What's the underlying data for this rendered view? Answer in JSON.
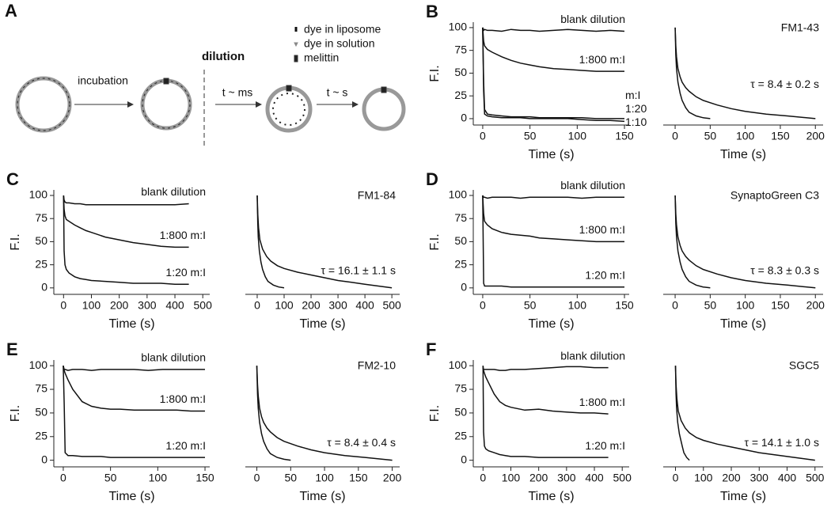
{
  "diagram": {
    "panel": "A",
    "steps": [
      "incubation",
      "t ~ ms",
      "t ~ s"
    ],
    "dilution": "dilution",
    "legend": [
      "dye in liposome",
      "dye in solution",
      "melittin"
    ]
  },
  "chart_data": [
    {
      "type": "line",
      "panel": "B",
      "xlabel": "Time (s)",
      "ylabel": "F.I.",
      "color": "#111111",
      "xlim": [
        -10,
        155
      ],
      "xticks": [
        0,
        50,
        100,
        150
      ],
      "ylim": [
        -7,
        106
      ],
      "yticks": [
        0,
        25,
        50,
        75,
        100
      ],
      "annotation": "m:I",
      "series": [
        {
          "name": "blank dilution",
          "x": [
            0,
            1,
            2,
            5,
            10,
            20,
            30,
            40,
            50,
            60,
            75,
            90,
            105,
            120,
            135,
            150
          ],
          "values": [
            100,
            97,
            98,
            97,
            97,
            96,
            98,
            97,
            97,
            96,
            97,
            98,
            97,
            96,
            97,
            96
          ]
        },
        {
          "name": "1:800 m:I",
          "x": [
            0,
            1,
            2,
            5,
            10,
            20,
            30,
            40,
            50,
            60,
            75,
            90,
            105,
            120,
            135,
            150
          ],
          "values": [
            100,
            85,
            80,
            76,
            73,
            68,
            64,
            61,
            59,
            57,
            55,
            54,
            53,
            52,
            52,
            52
          ]
        },
        {
          "name": "1:20",
          "x": [
            0,
            1,
            2,
            5,
            10,
            20,
            30,
            40,
            50,
            60,
            75,
            90,
            105,
            120,
            135,
            150
          ],
          "values": [
            100,
            40,
            10,
            5,
            4,
            3,
            2,
            2,
            2,
            1,
            1,
            1,
            1,
            0,
            0,
            0
          ]
        },
        {
          "name": "1:10",
          "x": [
            0,
            1,
            2,
            5,
            10,
            20,
            30,
            40,
            50,
            60,
            75,
            90,
            105,
            120,
            135,
            150
          ],
          "values": [
            100,
            30,
            5,
            3,
            2,
            1,
            1,
            1,
            0,
            0,
            0,
            0,
            -1,
            -2,
            -2,
            -3
          ]
        }
      ]
    },
    {
      "type": "line",
      "title": "FM1-43",
      "annotation": "τ = 8.4 ± 0.2 s",
      "xlabel": "Time (s)",
      "color": "#111111",
      "xlim": [
        -17,
        211
      ],
      "xticks": [
        0,
        50,
        100,
        150,
        200
      ],
      "ylim": [
        -7,
        106
      ],
      "series": [
        {
          "x": [
            0,
            1,
            2,
            4,
            7,
            10,
            15,
            20,
            30,
            40,
            50
          ],
          "values": [
            100,
            70,
            55,
            40,
            28,
            20,
            12,
            7,
            3,
            1,
            0
          ]
        },
        {
          "x": [
            0,
            1,
            2,
            4,
            7,
            10,
            15,
            20,
            30,
            40,
            60,
            80,
            100,
            130,
            160,
            200
          ],
          "values": [
            100,
            80,
            68,
            55,
            46,
            40,
            34,
            30,
            24,
            20,
            15,
            11,
            8,
            5,
            3,
            0
          ]
        }
      ]
    },
    {
      "type": "line",
      "panel": "C",
      "xlabel": "Time (s)",
      "ylabel": "F.I.",
      "color": "#111111",
      "xlim": [
        -35,
        525
      ],
      "xticks": [
        0,
        100,
        200,
        300,
        400,
        500
      ],
      "ylim": [
        -7,
        106
      ],
      "yticks": [
        0,
        25,
        50,
        75,
        100
      ],
      "series": [
        {
          "name": "blank dilution",
          "x": [
            0,
            2,
            5,
            10,
            20,
            40,
            60,
            80,
            100,
            150,
            200,
            250,
            300,
            350,
            400,
            450
          ],
          "values": [
            100,
            95,
            93,
            92,
            92,
            91,
            91,
            90,
            90,
            90,
            90,
            90,
            90,
            90,
            90,
            91
          ]
        },
        {
          "name": "1:800 m:I",
          "x": [
            0,
            2,
            5,
            10,
            20,
            40,
            60,
            80,
            100,
            150,
            200,
            250,
            300,
            350,
            400,
            450
          ],
          "values": [
            100,
            85,
            78,
            74,
            72,
            68,
            65,
            62,
            60,
            55,
            52,
            49,
            47,
            45,
            44,
            44
          ]
        },
        {
          "name": "1:20 m:I",
          "x": [
            0,
            2,
            5,
            10,
            20,
            40,
            60,
            80,
            100,
            150,
            200,
            250,
            300,
            350,
            400,
            450
          ],
          "values": [
            100,
            40,
            25,
            20,
            16,
            12,
            10,
            9,
            8,
            7,
            6,
            5,
            5,
            5,
            4,
            4
          ]
        }
      ]
    },
    {
      "type": "line",
      "title": "FM1-84",
      "annotation": "τ = 16.1 ± 1.1 s",
      "xlabel": "Time (s)",
      "color": "#111111",
      "xlim": [
        -44,
        529
      ],
      "xticks": [
        0,
        100,
        200,
        300,
        400,
        500
      ],
      "ylim": [
        -7,
        106
      ],
      "series": [
        {
          "x": [
            0,
            2,
            4,
            8,
            14,
            20,
            30,
            40,
            60,
            80,
            100
          ],
          "values": [
            100,
            70,
            55,
            40,
            28,
            20,
            12,
            7,
            3,
            1,
            0
          ]
        },
        {
          "x": [
            0,
            2,
            5,
            10,
            20,
            35,
            50,
            75,
            100,
            150,
            200,
            250,
            300,
            350,
            400,
            450,
            500
          ],
          "values": [
            100,
            80,
            65,
            52,
            42,
            34,
            29,
            24,
            21,
            17,
            14,
            11,
            8,
            6,
            4,
            2,
            0
          ]
        }
      ]
    },
    {
      "type": "line",
      "panel": "D",
      "xlabel": "Time (s)",
      "ylabel": "F.I.",
      "color": "#111111",
      "xlim": [
        -10,
        155
      ],
      "xticks": [
        0,
        50,
        100,
        150
      ],
      "ylim": [
        -7,
        106
      ],
      "yticks": [
        0,
        25,
        50,
        75,
        100
      ],
      "series": [
        {
          "name": "blank dilution",
          "x": [
            0,
            1,
            2,
            5,
            10,
            20,
            30,
            40,
            50,
            60,
            75,
            90,
            105,
            120,
            135,
            150
          ],
          "values": [
            100,
            98,
            98,
            97,
            98,
            98,
            98,
            97,
            98,
            98,
            98,
            98,
            97,
            98,
            98,
            98
          ]
        },
        {
          "name": "1:800 m:I",
          "x": [
            0,
            1,
            2,
            5,
            10,
            20,
            30,
            40,
            50,
            60,
            75,
            90,
            105,
            120,
            135,
            150
          ],
          "values": [
            100,
            80,
            72,
            68,
            64,
            60,
            58,
            57,
            56,
            54,
            53,
            52,
            51,
            50,
            50,
            50
          ]
        },
        {
          "name": "1:20 m:I",
          "x": [
            0,
            1,
            2,
            5,
            10,
            20,
            30,
            40,
            50,
            60,
            75,
            90,
            105,
            120,
            135,
            150
          ],
          "values": [
            100,
            5,
            2,
            2,
            2,
            2,
            1,
            1,
            1,
            1,
            1,
            1,
            1,
            1,
            1,
            1
          ]
        }
      ]
    },
    {
      "type": "line",
      "title": "SynaptoGreen C3",
      "annotation": "τ = 8.3 ± 0.3 s",
      "xlabel": "Time (s)",
      "color": "#111111",
      "xlim": [
        -17,
        211
      ],
      "xticks": [
        0,
        50,
        100,
        150,
        200
      ],
      "ylim": [
        -7,
        106
      ],
      "series": [
        {
          "x": [
            0,
            1,
            2,
            4,
            7,
            10,
            15,
            20,
            30,
            40,
            50
          ],
          "values": [
            100,
            70,
            55,
            40,
            28,
            20,
            12,
            7,
            3,
            1,
            0
          ]
        },
        {
          "x": [
            0,
            1,
            2,
            4,
            7,
            10,
            15,
            20,
            30,
            40,
            60,
            80,
            100,
            130,
            160,
            200
          ],
          "values": [
            100,
            80,
            68,
            55,
            46,
            40,
            34,
            30,
            24,
            20,
            15,
            11,
            8,
            5,
            3,
            0
          ]
        }
      ]
    },
    {
      "type": "line",
      "panel": "E",
      "xlabel": "Time (s)",
      "ylabel": "F.I.",
      "color": "#111111",
      "xlim": [
        -10,
        155
      ],
      "xticks": [
        0,
        50,
        100,
        150
      ],
      "ylim": [
        -7,
        106
      ],
      "yticks": [
        0,
        25,
        50,
        75,
        100
      ],
      "series": [
        {
          "name": "blank dilution",
          "x": [
            0,
            1,
            2,
            5,
            10,
            20,
            30,
            40,
            50,
            60,
            75,
            90,
            105,
            120,
            135,
            150
          ],
          "values": [
            100,
            96,
            96,
            95,
            96,
            96,
            95,
            96,
            96,
            96,
            96,
            95,
            96,
            96,
            96,
            96
          ]
        },
        {
          "name": "1:800 m:I",
          "x": [
            0,
            1,
            2,
            5,
            10,
            20,
            30,
            40,
            50,
            60,
            75,
            90,
            105,
            120,
            135,
            150
          ],
          "values": [
            100,
            95,
            92,
            85,
            75,
            62,
            57,
            55,
            54,
            54,
            53,
            53,
            53,
            53,
            52,
            52
          ]
        },
        {
          "name": "1:20 m:I",
          "x": [
            0,
            1,
            2,
            5,
            10,
            20,
            30,
            40,
            50,
            60,
            75,
            90,
            105,
            120,
            135,
            150
          ],
          "values": [
            100,
            60,
            8,
            5,
            5,
            4,
            4,
            4,
            3,
            3,
            3,
            3,
            3,
            3,
            3,
            3
          ]
        }
      ]
    },
    {
      "type": "line",
      "title": "FM2-10",
      "annotation": "τ = 8.4 ± 0.4 s",
      "xlabel": "Time (s)",
      "color": "#111111",
      "xlim": [
        -17,
        211
      ],
      "xticks": [
        0,
        50,
        100,
        150,
        200
      ],
      "ylim": [
        -7,
        106
      ],
      "series": [
        {
          "x": [
            0,
            1,
            2,
            4,
            7,
            10,
            15,
            20,
            30,
            40,
            50
          ],
          "values": [
            100,
            70,
            55,
            40,
            28,
            20,
            12,
            7,
            3,
            1,
            0
          ]
        },
        {
          "x": [
            0,
            1,
            2,
            4,
            7,
            10,
            15,
            20,
            30,
            40,
            60,
            80,
            100,
            130,
            160,
            200
          ],
          "values": [
            100,
            80,
            68,
            55,
            46,
            40,
            34,
            30,
            24,
            20,
            15,
            11,
            8,
            5,
            3,
            0
          ]
        }
      ]
    },
    {
      "type": "line",
      "panel": "F",
      "xlabel": "Time (s)",
      "ylabel": "F.I.",
      "color": "#111111",
      "xlim": [
        -35,
        525
      ],
      "xticks": [
        0,
        100,
        200,
        300,
        400,
        500
      ],
      "ylim": [
        -7,
        106
      ],
      "yticks": [
        0,
        25,
        50,
        75,
        100
      ],
      "series": [
        {
          "name": "blank dilution",
          "x": [
            0,
            2,
            5,
            10,
            20,
            40,
            60,
            80,
            100,
            150,
            200,
            250,
            300,
            350,
            400,
            450
          ],
          "values": [
            98,
            96,
            96,
            96,
            96,
            96,
            95,
            95,
            96,
            96,
            97,
            98,
            99,
            99,
            98,
            98
          ]
        },
        {
          "name": "1:800 m:I",
          "x": [
            0,
            2,
            5,
            10,
            20,
            40,
            60,
            80,
            100,
            150,
            200,
            250,
            300,
            350,
            400,
            450
          ],
          "values": [
            100,
            95,
            92,
            88,
            82,
            70,
            62,
            58,
            56,
            53,
            54,
            52,
            51,
            50,
            50,
            49
          ]
        },
        {
          "name": "1:20 m:I",
          "x": [
            0,
            2,
            5,
            10,
            20,
            40,
            60,
            80,
            100,
            150,
            200,
            250,
            300,
            350,
            400,
            450
          ],
          "values": [
            100,
            30,
            15,
            12,
            10,
            8,
            6,
            5,
            4,
            4,
            3,
            3,
            3,
            3,
            3,
            3
          ]
        }
      ]
    },
    {
      "type": "line",
      "title": "SGC5",
      "annotation": "τ = 14.1 ± 1.0 s",
      "xlabel": "Time (s)",
      "color": "#111111",
      "xlim": [
        -44,
        529
      ],
      "xticks": [
        0,
        100,
        200,
        300,
        400,
        500
      ],
      "ylim": [
        -7,
        106
      ],
      "series": [
        {
          "x": [
            0,
            2,
            4,
            8,
            14,
            20,
            25,
            30,
            40,
            50
          ],
          "values": [
            100,
            70,
            55,
            40,
            28,
            20,
            14,
            8,
            3,
            0
          ]
        },
        {
          "x": [
            0,
            2,
            5,
            10,
            20,
            35,
            50,
            75,
            100,
            150,
            200,
            250,
            300,
            350,
            400,
            450,
            500
          ],
          "values": [
            100,
            80,
            65,
            52,
            42,
            34,
            29,
            24,
            21,
            17,
            14,
            11,
            8,
            6,
            4,
            2,
            0
          ]
        }
      ]
    }
  ]
}
